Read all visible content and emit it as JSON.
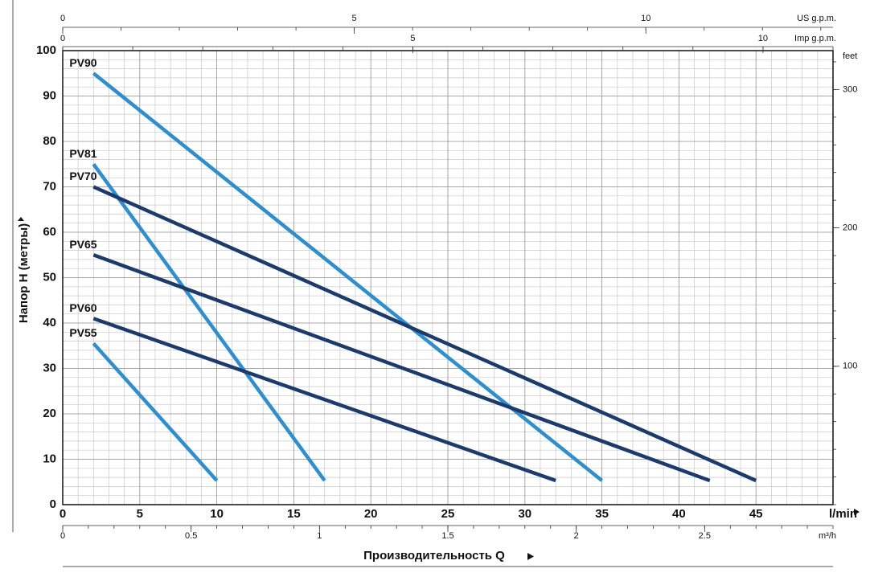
{
  "chart_data": {
    "type": "line",
    "x_label": "l/min",
    "y_label": "Напор H (метры)",
    "x_title": "Производительность Q",
    "xlim": [
      0,
      50
    ],
    "xticks": [
      0,
      5,
      10,
      15,
      20,
      25,
      30,
      35,
      40,
      45
    ],
    "ylim": [
      0,
      100
    ],
    "yticks": [
      0,
      10,
      20,
      30,
      40,
      50,
      60,
      70,
      80,
      90,
      100
    ],
    "grid": true,
    "top_axes": [
      {
        "label": "US g.p.m.",
        "lim": [
          0,
          13.21
        ],
        "ticks": [
          0,
          5,
          10
        ]
      },
      {
        "label": "Imp g.p.m.",
        "lim": [
          0,
          11
        ],
        "ticks": [
          0,
          5,
          10
        ]
      }
    ],
    "bottom_axis2": {
      "label": "m³/h",
      "lim": [
        0,
        3
      ],
      "ticks": [
        0,
        0.5,
        1,
        1.5,
        2,
        2.5
      ]
    },
    "y2_label": "feet",
    "y2lim": [
      0,
      328.1
    ],
    "y2ticks": [
      100,
      200,
      300
    ],
    "series": [
      {
        "name": "PV90",
        "color": "#2b8fd1",
        "x": [
          2,
          35
        ],
        "values": [
          95,
          5.3
        ]
      },
      {
        "name": "PV81",
        "color": "#2b8fd1",
        "x": [
          2,
          17
        ],
        "values": [
          75,
          5.3
        ]
      },
      {
        "name": "PV70",
        "color": "#1b3b6f",
        "x": [
          2,
          45
        ],
        "values": [
          70,
          5.3
        ]
      },
      {
        "name": "PV65",
        "color": "#1b3b6f",
        "x": [
          2,
          42
        ],
        "values": [
          55,
          5.3
        ]
      },
      {
        "name": "PV60",
        "color": "#1b3b6f",
        "x": [
          2,
          32
        ],
        "values": [
          41,
          5.3
        ]
      },
      {
        "name": "PV55",
        "color": "#2b8fd1",
        "x": [
          2,
          10
        ],
        "values": [
          35.5,
          5.3
        ]
      }
    ]
  }
}
